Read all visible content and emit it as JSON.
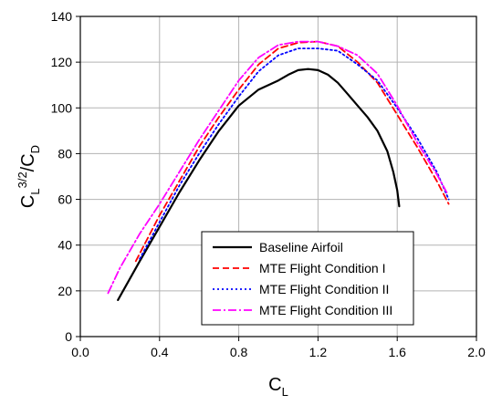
{
  "chart_data": {
    "type": "line",
    "xlabel": {
      "main": "C",
      "sub": "L"
    },
    "ylabel": {
      "main": "C",
      "sub1": "L",
      "sup": "3/2",
      "slash": "/C",
      "sub2": "D"
    },
    "xlim": [
      0.0,
      2.0
    ],
    "ylim": [
      0,
      140
    ],
    "xticks": [
      "0.0",
      "0.4",
      "0.8",
      "1.2",
      "1.6",
      "2.0"
    ],
    "yticks": [
      "0",
      "20",
      "40",
      "60",
      "80",
      "100",
      "120",
      "140"
    ],
    "grid": true,
    "legend_position": "bottom-right",
    "series": [
      {
        "name": "Baseline Airfoil",
        "color": "#000000",
        "dash": "solid",
        "x": [
          0.19,
          0.3,
          0.4,
          0.5,
          0.6,
          0.7,
          0.8,
          0.9,
          1.0,
          1.05,
          1.1,
          1.15,
          1.2,
          1.25,
          1.3,
          1.35,
          1.4,
          1.45,
          1.5,
          1.55,
          1.58,
          1.6,
          1.61
        ],
        "y": [
          16,
          33,
          48,
          63,
          77,
          90,
          101,
          108,
          112,
          114.5,
          116.5,
          117,
          116.5,
          114.5,
          111,
          106,
          101,
          96,
          90,
          81,
          72,
          64,
          57
        ]
      },
      {
        "name": "MTE Flight Condition I",
        "color": "#ff0000",
        "dash": "dashed",
        "x": [
          0.28,
          0.4,
          0.5,
          0.6,
          0.7,
          0.8,
          0.9,
          1.0,
          1.1,
          1.2,
          1.3,
          1.4,
          1.5,
          1.6,
          1.7,
          1.8,
          1.86
        ],
        "y": [
          33,
          53,
          68,
          83,
          96,
          108,
          119,
          126,
          128.5,
          129,
          127,
          120,
          111,
          97,
          83,
          68,
          58
        ]
      },
      {
        "name": "MTE Flight Condition II",
        "color": "#0000ff",
        "dash": "dotted",
        "x": [
          0.3,
          0.4,
          0.5,
          0.6,
          0.7,
          0.8,
          0.9,
          1.0,
          1.1,
          1.2,
          1.3,
          1.4,
          1.5,
          1.6,
          1.7,
          1.8,
          1.86
        ],
        "y": [
          34,
          50,
          66,
          80,
          93,
          105,
          116,
          123,
          126,
          126,
          125,
          119,
          112,
          100,
          87,
          72,
          60
        ]
      },
      {
        "name": "MTE Flight Condition III",
        "color": "#ff00ff",
        "dash": "dashdot",
        "x": [
          0.14,
          0.2,
          0.3,
          0.4,
          0.5,
          0.6,
          0.7,
          0.8,
          0.9,
          1.0,
          1.1,
          1.2,
          1.3,
          1.4,
          1.5,
          1.6,
          1.7,
          1.8,
          1.85
        ],
        "y": [
          19,
          30,
          45,
          58,
          72,
          86,
          99,
          112,
          122,
          127.5,
          129,
          129,
          127,
          123,
          115,
          101,
          85,
          71,
          63
        ]
      }
    ]
  }
}
